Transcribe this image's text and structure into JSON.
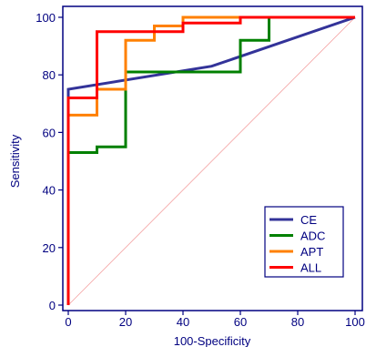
{
  "chart_data": {
    "type": "line",
    "title": "",
    "xlabel": "100-Specificity",
    "ylabel": "Sensitivity",
    "xlim": [
      0,
      100
    ],
    "ylim": [
      0,
      100
    ],
    "x_ticks": [
      "0",
      "20",
      "40",
      "60",
      "80",
      "100"
    ],
    "y_ticks": [
      "0",
      "20",
      "40",
      "60",
      "80",
      "100"
    ],
    "grid": false,
    "legend_position": "bottom-right",
    "diagonal_reference": true,
    "series": [
      {
        "name": "CE",
        "color": "#333399",
        "points": [
          [
            0,
            0
          ],
          [
            0,
            75
          ],
          [
            50,
            83
          ],
          [
            100,
            100
          ]
        ]
      },
      {
        "name": "ADC",
        "color": "#008000",
        "points": [
          [
            0,
            0
          ],
          [
            0,
            53
          ],
          [
            10,
            53
          ],
          [
            10,
            55
          ],
          [
            20,
            55
          ],
          [
            20,
            81
          ],
          [
            60,
            81
          ],
          [
            60,
            92
          ],
          [
            70,
            92
          ],
          [
            70,
            100
          ],
          [
            100,
            100
          ]
        ]
      },
      {
        "name": "APT",
        "color": "#ff8000",
        "points": [
          [
            0,
            0
          ],
          [
            0,
            66
          ],
          [
            10,
            66
          ],
          [
            10,
            75
          ],
          [
            20,
            75
          ],
          [
            20,
            92
          ],
          [
            30,
            92
          ],
          [
            30,
            97
          ],
          [
            40,
            97
          ],
          [
            40,
            100
          ],
          [
            100,
            100
          ]
        ]
      },
      {
        "name": "ALL",
        "color": "#ff0000",
        "points": [
          [
            0,
            0
          ],
          [
            0,
            72
          ],
          [
            10,
            72
          ],
          [
            10,
            95
          ],
          [
            40,
            95
          ],
          [
            40,
            98
          ],
          [
            60,
            98
          ],
          [
            60,
            100
          ],
          [
            100,
            100
          ]
        ]
      }
    ]
  }
}
